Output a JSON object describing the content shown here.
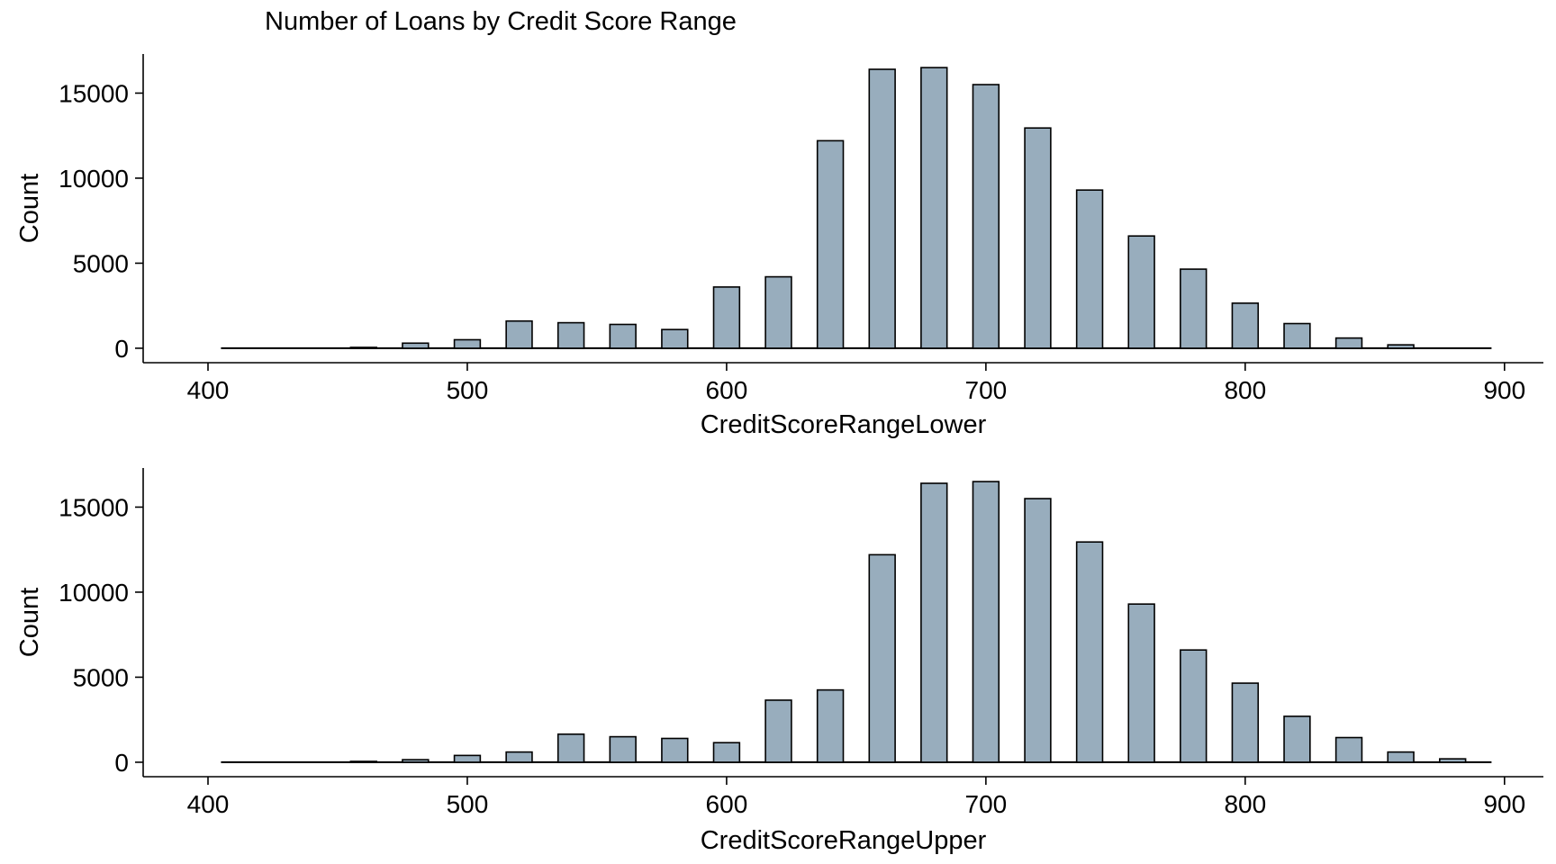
{
  "title": "Number of Loans by Credit Score Range",
  "colors": {
    "bar_fill": "#98adbd",
    "bar_stroke": "#000000",
    "axis": "#000000",
    "background": "#ffffff"
  },
  "chart_data": [
    {
      "type": "bar",
      "title": "Number of Loans by Credit Score Range",
      "xlabel": "CreditScoreRangeLower",
      "ylabel": "Count",
      "xlim": [
        375,
        915
      ],
      "ylim": [
        -850,
        17300
      ],
      "xticks": [
        400,
        500,
        600,
        700,
        800,
        900
      ],
      "yticks": [
        0,
        5000,
        10000,
        15000
      ],
      "bar_width": 10,
      "grid": false,
      "legend": "none",
      "baseline_range": [
        405,
        895
      ],
      "x": [
        460,
        480,
        500,
        520,
        540,
        560,
        580,
        600,
        620,
        640,
        660,
        680,
        700,
        720,
        740,
        760,
        780,
        800,
        820,
        840,
        860
      ],
      "values": [
        50,
        300,
        500,
        1600,
        1500,
        1400,
        1100,
        3600,
        4200,
        12200,
        16400,
        16500,
        15500,
        12950,
        9300,
        6600,
        4650,
        2650,
        1450,
        600,
        200
      ]
    },
    {
      "type": "bar",
      "title": "",
      "xlabel": "CreditScoreRangeUpper",
      "ylabel": "Count",
      "xlim": [
        375,
        915
      ],
      "ylim": [
        -850,
        17300
      ],
      "xticks": [
        400,
        500,
        600,
        700,
        800,
        900
      ],
      "yticks": [
        0,
        5000,
        10000,
        15000
      ],
      "bar_width": 10,
      "grid": false,
      "legend": "none",
      "baseline_range": [
        405,
        895
      ],
      "x": [
        460,
        480,
        500,
        520,
        540,
        560,
        580,
        600,
        620,
        640,
        660,
        680,
        700,
        720,
        740,
        760,
        780,
        800,
        820,
        840,
        860,
        880
      ],
      "values": [
        50,
        150,
        400,
        600,
        1650,
        1500,
        1400,
        1150,
        3650,
        4250,
        12200,
        16400,
        16500,
        15500,
        12950,
        9300,
        6600,
        4650,
        2700,
        1450,
        600,
        200
      ]
    }
  ]
}
